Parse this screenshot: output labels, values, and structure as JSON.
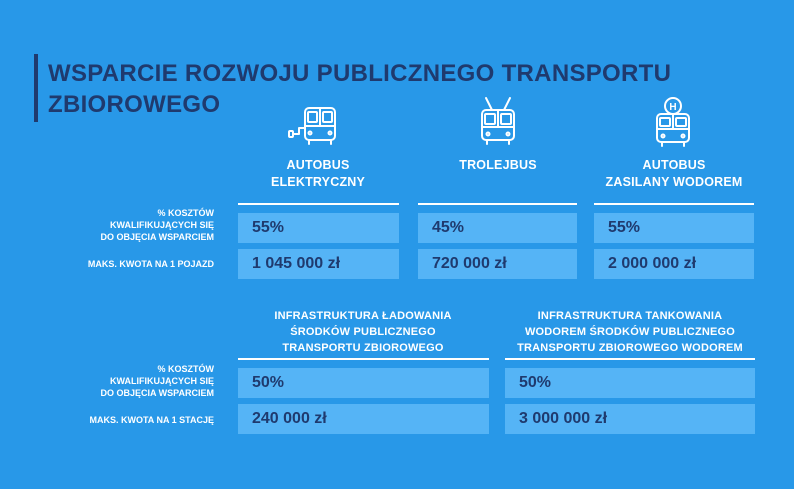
{
  "title": {
    "line1": "WSPARCIE ROZWOJU PUBLICZNEGO TRANSPORTU",
    "line2": "ZBIOROWEGO"
  },
  "icons": [
    "electric-bus-icon",
    "trolleybus-icon",
    "hydrogen-bus-icon"
  ],
  "vehicles": {
    "headers": [
      {
        "line1": "AUTOBUS",
        "line2": "ELEKTRYCZNY"
      },
      {
        "line1": "TROLEJBUS",
        "line2": ""
      },
      {
        "line1": "AUTOBUS",
        "line2": "ZASILANY WODOREM"
      }
    ],
    "row_labels": {
      "costs": [
        "% KOSZTÓW",
        "KWALIFIKUJĄCYCH SIĘ",
        "DO OBJĘCIA WSPARCIEM"
      ],
      "max_amount": "MAKS. KWOTA NA 1 POJAZD"
    },
    "percentages": [
      "55%",
      "45%",
      "55%"
    ],
    "amounts": [
      "1 045 000 zł",
      "720 000 zł",
      "2 000 000 zł"
    ]
  },
  "infrastructure": {
    "headers": [
      [
        "INFRASTRUKTURA ŁADOWANIA",
        "ŚRODKÓW PUBLICZNEGO",
        "TRANSPORTU ZBIOROWEGO"
      ],
      [
        "INFRASTRUKTURA TANKOWANIA",
        "WODOREM ŚRODKÓW PUBLICZNEGO",
        "TRANSPORTU ZBIOROWEGO WODOREM"
      ]
    ],
    "row_labels": {
      "costs": [
        "% KOSZTÓW",
        "KWALIFIKUJĄCYCH SIĘ",
        "DO OBJĘCIA WSPARCIEM"
      ],
      "max_amount": "MAKS. KWOTA NA 1 STACJĘ"
    },
    "percentages": [
      "50%",
      "50%"
    ],
    "amounts": [
      "240 000 zł",
      "3 000 000 zł"
    ]
  },
  "colors": {
    "background": "#2898e8",
    "cell": "#55b4f6",
    "navy": "#1f3a6e",
    "white": "#ffffff"
  }
}
